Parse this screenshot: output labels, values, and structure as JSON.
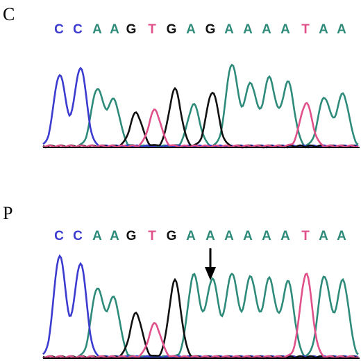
{
  "colors": {
    "C": "#3b3bd0",
    "A": "#2e8b7a",
    "G": "#111111",
    "T": "#e0508a"
  },
  "panels": [
    {
      "id": "c",
      "label": "C",
      "bases": [
        "C",
        "C",
        "A",
        "A",
        "G",
        "T",
        "G",
        "A",
        "G",
        "A",
        "A",
        "A",
        "A",
        "T",
        "A",
        "A"
      ],
      "arrow": false
    },
    {
      "id": "p",
      "label": "P",
      "bases": [
        "C",
        "C",
        "A",
        "A",
        "G",
        "T",
        "G",
        "A",
        "A",
        "A",
        "A",
        "A",
        "A",
        "T",
        "A",
        "A"
      ],
      "arrow": true,
      "arrow_base_index": 8
    }
  ]
}
